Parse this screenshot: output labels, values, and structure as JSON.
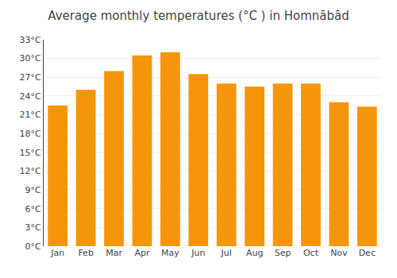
{
  "chart_data": {
    "type": "bar",
    "title": "Average monthly temperatures (°C ) in Homnābād",
    "categories": [
      "Jan",
      "Feb",
      "Mar",
      "Apr",
      "May",
      "Jun",
      "Jul",
      "Aug",
      "Sep",
      "Oct",
      "Nov",
      "Dec"
    ],
    "values": [
      22.5,
      25.0,
      28.0,
      30.5,
      31.0,
      27.5,
      26.0,
      25.5,
      26.0,
      26.0,
      23.0,
      22.3
    ],
    "color": "#F5960A",
    "ylim": [
      0,
      33
    ],
    "yticks": [
      {
        "value": 0,
        "label": "0°C"
      },
      {
        "value": 3,
        "label": "3°C"
      },
      {
        "value": 6,
        "label": "6°C"
      },
      {
        "value": 9,
        "label": "9°C"
      },
      {
        "value": 12,
        "label": "12°C"
      },
      {
        "value": 15,
        "label": "15°C"
      },
      {
        "value": 18,
        "label": "18°C"
      },
      {
        "value": 21,
        "label": "21°C"
      },
      {
        "value": 24,
        "label": "24°C"
      },
      {
        "value": 27,
        "label": "27°C"
      },
      {
        "value": 30,
        "label": "30°C"
      },
      {
        "value": 33,
        "label": "33°C"
      }
    ],
    "grid": true
  }
}
